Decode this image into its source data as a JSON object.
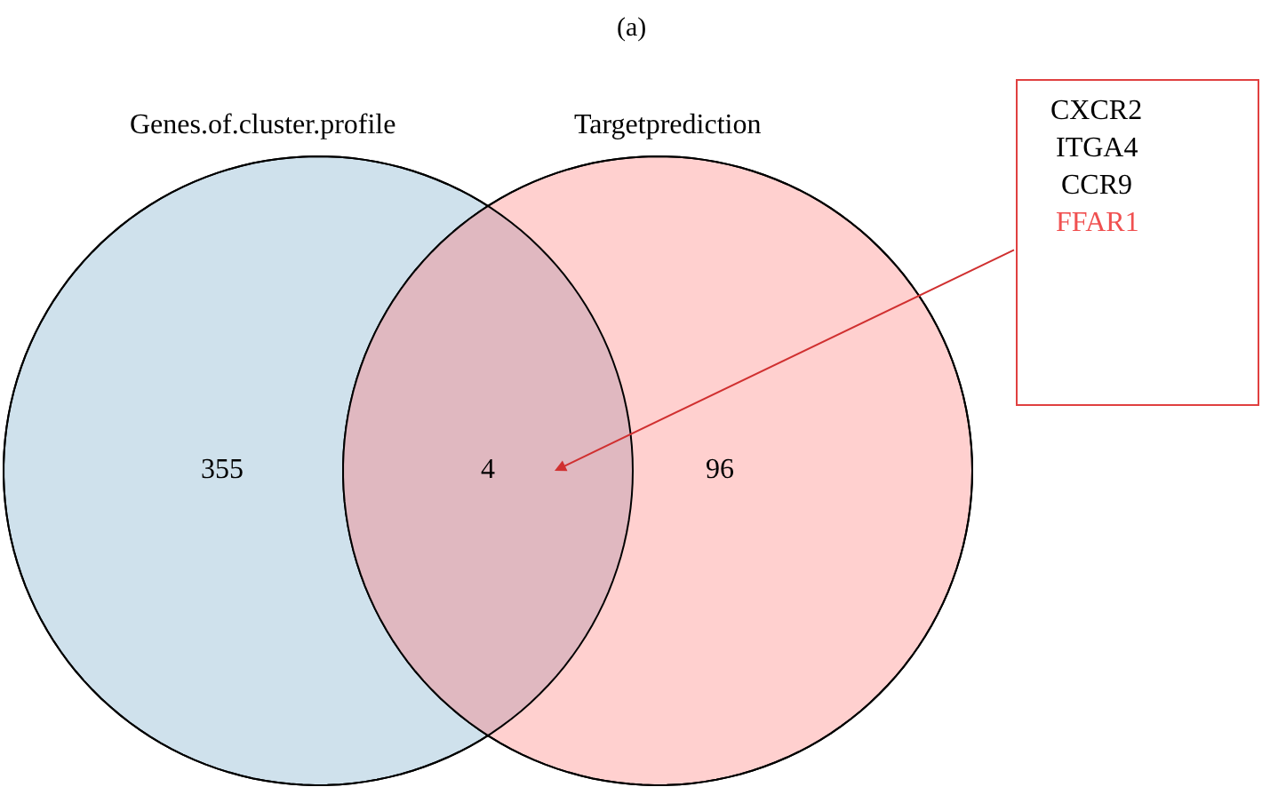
{
  "chart_data": {
    "type": "other",
    "title": "(a)",
    "categories": [
      "Genes.of.cluster.profile",
      null,
      "Targetprediction"
    ],
    "values": [
      355,
      4,
      96
    ],
    "data_labels": true,
    "colors": [
      "#cfe1ec",
      "#e0b8c0",
      "#ffd0cf"
    ],
    "annotations": [
      "CXCR2",
      "ITGA4",
      "CCR9",
      "FFAR1"
    ]
  }
}
